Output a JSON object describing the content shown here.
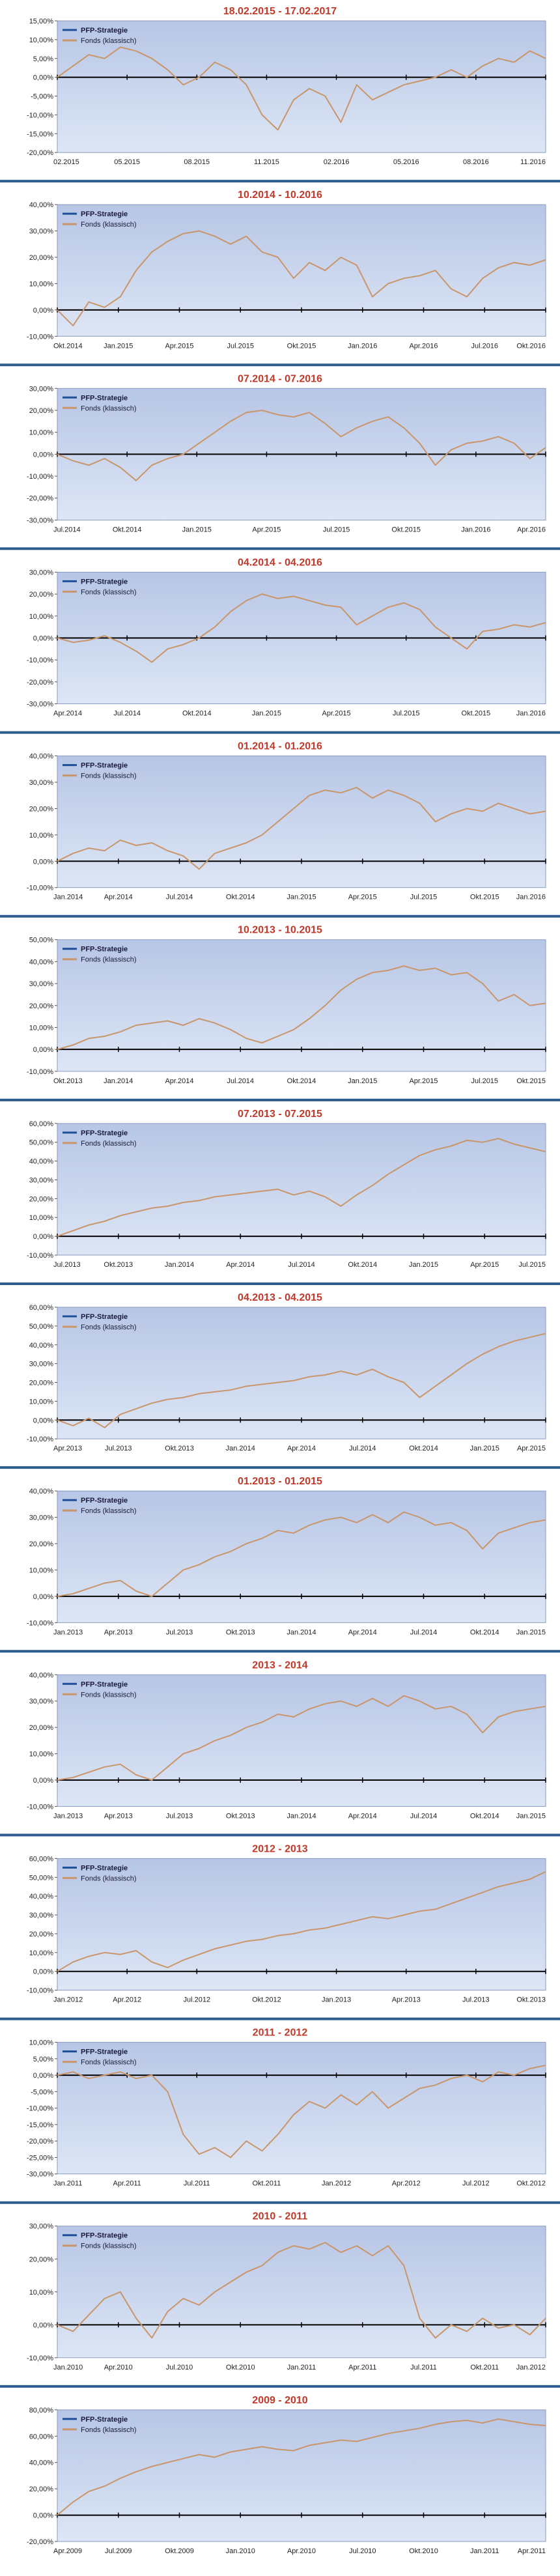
{
  "colors": {
    "title": "#c0392b",
    "separator": "#2f5c8f",
    "fund_line": "#c9956a",
    "strategy_line": "#1f4e99",
    "zero_line": "#000000",
    "plot_top": "#b7c6e6",
    "plot_bottom": "#dde6f5"
  },
  "chart_data": [
    {
      "type": "line",
      "title": "18.02.2015 - 17.02.2017",
      "ylim": [
        -0.2,
        0.15
      ],
      "yticks": [
        "15,00%",
        "10,00%",
        "5,00%",
        "0,00%",
        "-5,00%",
        "-10,00%",
        "-15,00%",
        "-20,00%"
      ],
      "xticks": [
        "02.2015",
        "05.2015",
        "08.2015",
        "11.2015",
        "02.2016",
        "05.2016",
        "08.2016",
        "11.2016"
      ],
      "series": [
        {
          "name": "PFP-Strategie",
          "values": []
        },
        {
          "name": "Fonds (klassisch)",
          "values": [
            0.0,
            0.03,
            0.06,
            0.05,
            0.08,
            0.07,
            0.05,
            0.02,
            -0.02,
            0.0,
            0.04,
            0.02,
            -0.02,
            -0.1,
            -0.14,
            -0.06,
            -0.03,
            -0.05,
            -0.12,
            -0.02,
            -0.06,
            -0.04,
            -0.02,
            -0.01,
            0.0,
            0.02,
            0.0,
            0.03,
            0.05,
            0.04,
            0.07,
            0.05
          ]
        }
      ]
    },
    {
      "type": "line",
      "title": "10.2014 - 10.2016",
      "ylim": [
        -0.1,
        0.4
      ],
      "yticks": [
        "40,00%",
        "30,00%",
        "20,00%",
        "10,00%",
        "0,00%",
        "-10,00%"
      ],
      "xticks": [
        "Okt.2014",
        "Jan.2015",
        "Apr.2015",
        "Jul.2015",
        "Okt.2015",
        "Jan.2016",
        "Apr.2016",
        "Jul.2016",
        "Okt.2016"
      ],
      "series": [
        {
          "name": "PFP-Strategie",
          "values": []
        },
        {
          "name": "Fonds (klassisch)",
          "values": [
            0.0,
            -0.06,
            0.03,
            0.01,
            0.05,
            0.15,
            0.22,
            0.26,
            0.29,
            0.3,
            0.28,
            0.25,
            0.28,
            0.22,
            0.2,
            0.12,
            0.18,
            0.15,
            0.2,
            0.17,
            0.05,
            0.1,
            0.12,
            0.13,
            0.15,
            0.08,
            0.05,
            0.12,
            0.16,
            0.18,
            0.17,
            0.19
          ]
        }
      ]
    },
    {
      "type": "line",
      "title": "07.2014 - 07.2016",
      "ylim": [
        -0.3,
        0.3
      ],
      "yticks": [
        "30,00%",
        "20,00%",
        "10,00%",
        "0,00%",
        "-10,00%",
        "-20,00%",
        "-30,00%"
      ],
      "xticks": [
        "Jul.2014",
        "Okt.2014",
        "Jan.2015",
        "Apr.2015",
        "Jul.2015",
        "Okt.2015",
        "Jan.2016",
        "Apr.2016"
      ],
      "series": [
        {
          "name": "PFP-Strategie",
          "values": []
        },
        {
          "name": "Fonds (klassisch)",
          "values": [
            0.0,
            -0.03,
            -0.05,
            -0.02,
            -0.06,
            -0.12,
            -0.05,
            -0.02,
            0.0,
            0.05,
            0.1,
            0.15,
            0.19,
            0.2,
            0.18,
            0.17,
            0.19,
            0.14,
            0.08,
            0.12,
            0.15,
            0.17,
            0.12,
            0.05,
            -0.05,
            0.02,
            0.05,
            0.06,
            0.08,
            0.05,
            -0.02,
            0.03
          ]
        }
      ]
    },
    {
      "type": "line",
      "title": "04.2014 - 04.2016",
      "ylim": [
        -0.3,
        0.3
      ],
      "yticks": [
        "30,00%",
        "20,00%",
        "10,00%",
        "0,00%",
        "-10,00%",
        "-20,00%",
        "-30,00%"
      ],
      "xticks": [
        "Apr.2014",
        "Jul.2014",
        "Okt.2014",
        "Jan.2015",
        "Apr.2015",
        "Jul.2015",
        "Okt.2015",
        "Jan.2016"
      ],
      "series": [
        {
          "name": "PFP-Strategie",
          "values": []
        },
        {
          "name": "Fonds (klassisch)",
          "values": [
            0.0,
            -0.02,
            -0.01,
            0.01,
            -0.02,
            -0.06,
            -0.11,
            -0.05,
            -0.03,
            0.0,
            0.05,
            0.12,
            0.17,
            0.2,
            0.18,
            0.19,
            0.17,
            0.15,
            0.14,
            0.06,
            0.1,
            0.14,
            0.16,
            0.13,
            0.05,
            0.0,
            -0.05,
            0.03,
            0.04,
            0.06,
            0.05,
            0.07
          ]
        }
      ]
    },
    {
      "type": "line",
      "title": "01.2014 - 01.2016",
      "ylim": [
        -0.1,
        0.4
      ],
      "yticks": [
        "40,00%",
        "30,00%",
        "20,00%",
        "10,00%",
        "0,00%",
        "-10,00%"
      ],
      "xticks": [
        "Jan.2014",
        "Apr.2014",
        "Jul.2014",
        "Okt.2014",
        "Jan.2015",
        "Apr.2015",
        "Jul.2015",
        "Okt.2015",
        "Jan.2016"
      ],
      "series": [
        {
          "name": "PFP-Strategie",
          "values": []
        },
        {
          "name": "Fonds (klassisch)",
          "values": [
            0.0,
            0.03,
            0.05,
            0.04,
            0.08,
            0.06,
            0.07,
            0.04,
            0.02,
            -0.03,
            0.03,
            0.05,
            0.07,
            0.1,
            0.15,
            0.2,
            0.25,
            0.27,
            0.26,
            0.28,
            0.24,
            0.27,
            0.25,
            0.22,
            0.15,
            0.18,
            0.2,
            0.19,
            0.22,
            0.2,
            0.18,
            0.19
          ]
        }
      ]
    },
    {
      "type": "line",
      "title": "10.2013 - 10.2015",
      "ylim": [
        -0.1,
        0.5
      ],
      "yticks": [
        "50,00%",
        "40,00%",
        "30,00%",
        "20,00%",
        "10,00%",
        "0,00%",
        "-10,00%"
      ],
      "xticks": [
        "Okt.2013",
        "Jan.2014",
        "Apr.2014",
        "Jul.2014",
        "Okt.2014",
        "Jan.2015",
        "Apr.2015",
        "Jul.2015",
        "Okt.2015"
      ],
      "series": [
        {
          "name": "PFP-Strategie",
          "values": []
        },
        {
          "name": "Fonds (klassisch)",
          "values": [
            0.0,
            0.02,
            0.05,
            0.06,
            0.08,
            0.11,
            0.12,
            0.13,
            0.11,
            0.14,
            0.12,
            0.09,
            0.05,
            0.03,
            0.06,
            0.09,
            0.14,
            0.2,
            0.27,
            0.32,
            0.35,
            0.36,
            0.38,
            0.36,
            0.37,
            0.34,
            0.35,
            0.3,
            0.22,
            0.25,
            0.2,
            0.21
          ]
        }
      ]
    },
    {
      "type": "line",
      "title": "07.2013 - 07.2015",
      "ylim": [
        -0.1,
        0.6
      ],
      "yticks": [
        "60,00%",
        "50,00%",
        "40,00%",
        "30,00%",
        "20,00%",
        "10,00%",
        "0,00%",
        "-10,00%"
      ],
      "xticks": [
        "Jul.2013",
        "Okt.2013",
        "Jan.2014",
        "Apr.2014",
        "Jul.2014",
        "Okt.2014",
        "Jan.2015",
        "Apr.2015",
        "Jul.2015"
      ],
      "series": [
        {
          "name": "PFP-Strategie",
          "values": []
        },
        {
          "name": "Fonds (klassisch)",
          "values": [
            0.0,
            0.03,
            0.06,
            0.08,
            0.11,
            0.13,
            0.15,
            0.16,
            0.18,
            0.19,
            0.21,
            0.22,
            0.23,
            0.24,
            0.25,
            0.22,
            0.24,
            0.21,
            0.16,
            0.22,
            0.27,
            0.33,
            0.38,
            0.43,
            0.46,
            0.48,
            0.51,
            0.5,
            0.52,
            0.49,
            0.47,
            0.45
          ]
        }
      ]
    },
    {
      "type": "line",
      "title": "04.2013 - 04.2015",
      "ylim": [
        -0.1,
        0.6
      ],
      "yticks": [
        "60,00%",
        "50,00%",
        "40,00%",
        "30,00%",
        "20,00%",
        "10,00%",
        "0,00%",
        "-10,00%"
      ],
      "xticks": [
        "Apr.2013",
        "Jul.2013",
        "Okt.2013",
        "Jan.2014",
        "Apr.2014",
        "Jul.2014",
        "Okt.2014",
        "Jan.2015",
        "Apr.2015"
      ],
      "series": [
        {
          "name": "PFP-Strategie",
          "values": []
        },
        {
          "name": "Fonds (klassisch)",
          "values": [
            0.0,
            -0.03,
            0.01,
            -0.04,
            0.03,
            0.06,
            0.09,
            0.11,
            0.12,
            0.14,
            0.15,
            0.16,
            0.18,
            0.19,
            0.2,
            0.21,
            0.23,
            0.24,
            0.26,
            0.24,
            0.27,
            0.23,
            0.2,
            0.12,
            0.18,
            0.24,
            0.3,
            0.35,
            0.39,
            0.42,
            0.44,
            0.46
          ]
        }
      ]
    },
    {
      "type": "line",
      "title": "01.2013 - 01.2015",
      "ylim": [
        -0.1,
        0.4
      ],
      "yticks": [
        "40,00%",
        "30,00%",
        "20,00%",
        "10,00%",
        "0,00%",
        "-10,00%"
      ],
      "xticks": [
        "Jan.2013",
        "Apr.2013",
        "Jul.2013",
        "Okt.2013",
        "Jan.2014",
        "Apr.2014",
        "Jul.2014",
        "Okt.2014",
        "Jan.2015"
      ],
      "series": [
        {
          "name": "PFP-Strategie",
          "values": []
        },
        {
          "name": "Fonds (klassisch)",
          "values": [
            0.0,
            0.01,
            0.03,
            0.05,
            0.06,
            0.02,
            0.0,
            0.05,
            0.1,
            0.12,
            0.15,
            0.17,
            0.2,
            0.22,
            0.25,
            0.24,
            0.27,
            0.29,
            0.3,
            0.28,
            0.31,
            0.28,
            0.32,
            0.3,
            0.27,
            0.28,
            0.25,
            0.18,
            0.24,
            0.26,
            0.28,
            0.29
          ]
        }
      ]
    },
    {
      "type": "line",
      "title": "2013 - 2014",
      "ylim": [
        -0.1,
        0.4
      ],
      "yticks": [
        "40,00%",
        "30,00%",
        "20,00%",
        "10,00%",
        "0,00%",
        "-10,00%"
      ],
      "xticks": [
        "Jan.2013",
        "Apr.2013",
        "Jul.2013",
        "Okt.2013",
        "Jan.2014",
        "Apr.2014",
        "Jul.2014",
        "Okt.2014",
        "Jan.2015"
      ],
      "series": [
        {
          "name": "PFP-Strategie",
          "values": []
        },
        {
          "name": "Fonds (klassisch)",
          "values": [
            0.0,
            0.01,
            0.03,
            0.05,
            0.06,
            0.02,
            0.0,
            0.05,
            0.1,
            0.12,
            0.15,
            0.17,
            0.2,
            0.22,
            0.25,
            0.24,
            0.27,
            0.29,
            0.3,
            0.28,
            0.31,
            0.28,
            0.32,
            0.3,
            0.27,
            0.28,
            0.25,
            0.18,
            0.24,
            0.26,
            0.27,
            0.28
          ]
        }
      ]
    },
    {
      "type": "line",
      "title": "2012 - 2013",
      "ylim": [
        -0.1,
        0.6
      ],
      "yticks": [
        "60,00%",
        "50,00%",
        "40,00%",
        "30,00%",
        "20,00%",
        "10,00%",
        "0,00%",
        "-10,00%"
      ],
      "xticks": [
        "Jan.2012",
        "Apr.2012",
        "Jul.2012",
        "Okt.2012",
        "Jan.2013",
        "Apr.2013",
        "Jul.2013",
        "Okt.2013"
      ],
      "series": [
        {
          "name": "PFP-Strategie",
          "values": []
        },
        {
          "name": "Fonds (klassisch)",
          "values": [
            0.0,
            0.05,
            0.08,
            0.1,
            0.09,
            0.11,
            0.05,
            0.02,
            0.06,
            0.09,
            0.12,
            0.14,
            0.16,
            0.17,
            0.19,
            0.2,
            0.22,
            0.23,
            0.25,
            0.27,
            0.29,
            0.28,
            0.3,
            0.32,
            0.33,
            0.36,
            0.39,
            0.42,
            0.45,
            0.47,
            0.49,
            0.53
          ]
        }
      ]
    },
    {
      "type": "line",
      "title": "2011 - 2012",
      "ylim": [
        -0.3,
        0.1
      ],
      "yticks": [
        "10,00%",
        "5,00%",
        "0,00%",
        "-5,00%",
        "-10,00%",
        "-15,00%",
        "-20,00%",
        "-25,00%",
        "-30,00%"
      ],
      "xticks": [
        "Jan.2011",
        "Apr.2011",
        "Jul.2011",
        "Okt.2011",
        "Jan.2012",
        "Apr.2012",
        "Jul.2012",
        "Okt.2012"
      ],
      "series": [
        {
          "name": "PFP-Strategie",
          "values": []
        },
        {
          "name": "Fonds (klassisch)",
          "values": [
            0.0,
            0.01,
            -0.01,
            0.0,
            0.01,
            -0.01,
            0.0,
            -0.05,
            -0.18,
            -0.24,
            -0.22,
            -0.25,
            -0.2,
            -0.23,
            -0.18,
            -0.12,
            -0.08,
            -0.1,
            -0.06,
            -0.09,
            -0.05,
            -0.1,
            -0.07,
            -0.04,
            -0.03,
            -0.01,
            0.0,
            -0.02,
            0.01,
            0.0,
            0.02,
            0.03
          ]
        }
      ]
    },
    {
      "type": "line",
      "title": "2010 - 2011",
      "ylim": [
        -0.1,
        0.3
      ],
      "yticks": [
        "30,00%",
        "20,00%",
        "10,00%",
        "0,00%",
        "-10,00%"
      ],
      "xticks": [
        "Jan.2010",
        "Apr.2010",
        "Jul.2010",
        "Okt.2010",
        "Jan.2011",
        "Apr.2011",
        "Jul.2011",
        "Okt.2011",
        "Jan.2012"
      ],
      "series": [
        {
          "name": "PFP-Strategie",
          "values": []
        },
        {
          "name": "Fonds (klassisch)",
          "values": [
            0.0,
            -0.02,
            0.03,
            0.08,
            0.1,
            0.02,
            -0.04,
            0.04,
            0.08,
            0.06,
            0.1,
            0.13,
            0.16,
            0.18,
            0.22,
            0.24,
            0.23,
            0.25,
            0.22,
            0.24,
            0.21,
            0.24,
            0.18,
            0.02,
            -0.04,
            0.0,
            -0.02,
            0.02,
            -0.01,
            0.0,
            -0.03,
            0.02
          ]
        }
      ]
    },
    {
      "type": "line",
      "title": "2009 - 2010",
      "ylim": [
        -0.2,
        0.8
      ],
      "yticks": [
        "80,00%",
        "60,00%",
        "40,00%",
        "20,00%",
        "0,00%",
        "-20,00%"
      ],
      "xticks": [
        "Apr.2009",
        "Jul.2009",
        "Okt.2009",
        "Jan.2010",
        "Apr.2010",
        "Jul.2010",
        "Okt.2010",
        "Jan.2011",
        "Apr.2011"
      ],
      "series": [
        {
          "name": "PFP-Strategie",
          "values": []
        },
        {
          "name": "Fonds (klassisch)",
          "values": [
            0.0,
            0.1,
            0.18,
            0.22,
            0.28,
            0.33,
            0.37,
            0.4,
            0.43,
            0.46,
            0.44,
            0.48,
            0.5,
            0.52,
            0.5,
            0.49,
            0.53,
            0.55,
            0.57,
            0.56,
            0.59,
            0.62,
            0.64,
            0.66,
            0.69,
            0.71,
            0.72,
            0.7,
            0.73,
            0.71,
            0.69,
            0.68
          ]
        }
      ]
    }
  ]
}
